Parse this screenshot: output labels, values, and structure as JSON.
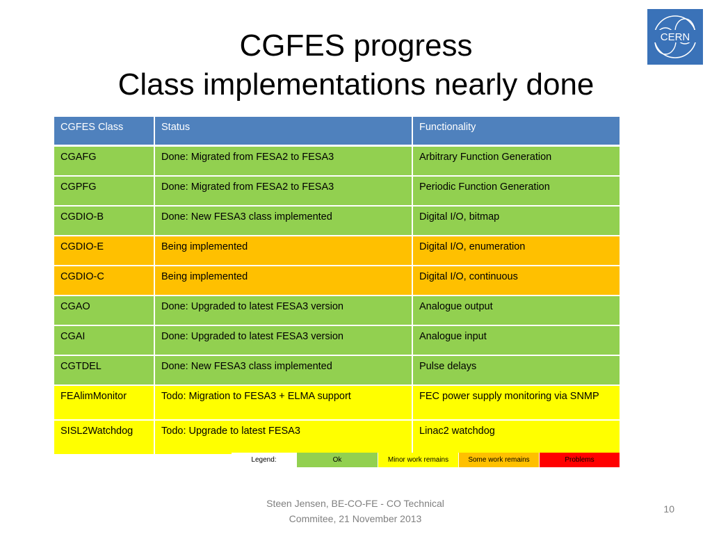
{
  "slide": {
    "title_line1": "CGFES progress",
    "title_line2": "Class implementations nearly done",
    "logo_text": "CERN",
    "footer_line1": "Steen Jensen, BE-CO-FE - CO Technical",
    "footer_line2": "Commitee, 21 November 2013",
    "page_number": "10"
  },
  "table": {
    "headers": [
      "CGFES Class",
      "Status",
      "Functionality"
    ],
    "rows": [
      {
        "class": "CGAFG",
        "status": "Done: Migrated from FESA2 to FESA3",
        "functionality": "Arbitrary Function Generation",
        "state": "ok"
      },
      {
        "class": "CGPFG",
        "status": "Done: Migrated from FESA2 to FESA3",
        "functionality": "Periodic Function Generation",
        "state": "ok"
      },
      {
        "class": "CGDIO-B",
        "status": "Done: New FESA3 class implemented",
        "functionality": "Digital I/O, bitmap",
        "state": "ok"
      },
      {
        "class": "CGDIO-E",
        "status": "Being implemented",
        "functionality": "Digital I/O, enumeration",
        "state": "some"
      },
      {
        "class": "CGDIO-C",
        "status": "Being implemented",
        "functionality": "Digital I/O, continuous",
        "state": "some"
      },
      {
        "class": "CGAO",
        "status": "Done: Upgraded to latest FESA3 version",
        "functionality": "Analogue output",
        "state": "ok"
      },
      {
        "class": "CGAI",
        "status": "Done: Upgraded to latest FESA3 version",
        "functionality": "Analogue input",
        "state": "ok"
      },
      {
        "class": "CGTDEL",
        "status": "Done: New FESA3 class implemented",
        "functionality": "Pulse delays",
        "state": "ok"
      },
      {
        "class": "FEAlimMonitor",
        "status": "Todo: Migration to FESA3 + ELMA support",
        "functionality": "FEC power supply monitoring via SNMP",
        "state": "minor"
      },
      {
        "class": "SISL2Watchdog",
        "status": "Todo: Upgrade to latest FESA3",
        "functionality": "Linac2 watchdog",
        "state": "minor"
      }
    ]
  },
  "legend": {
    "label": "Legend:",
    "ok": "Ok",
    "minor": "Minor work remains",
    "some": "Some work remains",
    "problems": "Problems"
  },
  "colors": {
    "header": "#4f81bd",
    "ok": "#92d050",
    "minor": "#ffff00",
    "some": "#ffc000",
    "problems": "#ff0000",
    "logo_bg": "#3a72b8"
  }
}
